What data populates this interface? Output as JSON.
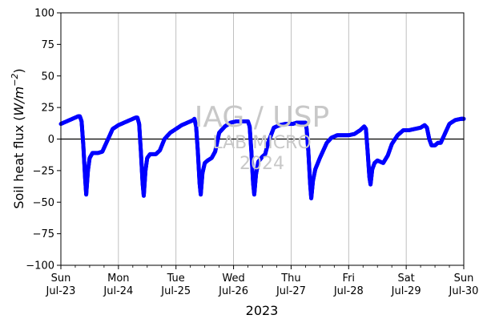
{
  "chart_data": {
    "type": "scatter",
    "title": "",
    "xlabel": "2023",
    "ylabel": "Soil heat flux (W/m⁻²)",
    "ylabel_prefix": "Soil heat flux (",
    "ylabel_unit_base": "W/m",
    "ylabel_unit_exp": "−2",
    "ylabel_suffix": ")",
    "ylim": [
      -100,
      100
    ],
    "yticks": [
      100,
      75,
      50,
      25,
      0,
      -25,
      -50,
      -75,
      -100
    ],
    "ytick_labels": [
      "100",
      "75",
      "50",
      "25",
      "0",
      "−25",
      "−50",
      "−75",
      "−100"
    ],
    "xlim_days": [
      0,
      7
    ],
    "xticks": [
      {
        "day": "Sun",
        "date": "Jul-23"
      },
      {
        "day": "Mon",
        "date": "Jul-24"
      },
      {
        "day": "Tue",
        "date": "Jul-25"
      },
      {
        "day": "Wed",
        "date": "Jul-26"
      },
      {
        "day": "Thu",
        "date": "Jul-27"
      },
      {
        "day": "Fri",
        "date": "Jul-28"
      },
      {
        "day": "Sat",
        "date": "Jul-29"
      },
      {
        "day": "Sun",
        "date": "Jul-30"
      }
    ],
    "grid": "vertical",
    "zero_line": true,
    "marker_color": "#0000ff",
    "series": [
      {
        "points": [
          [
            0.0,
            12
          ],
          [
            0.1,
            14
          ],
          [
            0.2,
            16
          ],
          [
            0.3,
            18
          ],
          [
            0.33,
            18
          ],
          [
            0.36,
            14
          ],
          [
            0.39,
            -5
          ],
          [
            0.42,
            -30
          ],
          [
            0.44,
            -44
          ],
          [
            0.47,
            -25
          ],
          [
            0.5,
            -15
          ],
          [
            0.55,
            -11
          ],
          [
            0.65,
            -11
          ],
          [
            0.72,
            -10
          ],
          [
            0.8,
            -2
          ],
          [
            0.9,
            8
          ],
          [
            1.0,
            11
          ],
          [
            1.1,
            13
          ],
          [
            1.2,
            15
          ],
          [
            1.3,
            17
          ],
          [
            1.33,
            17
          ],
          [
            1.36,
            12
          ],
          [
            1.39,
            -10
          ],
          [
            1.42,
            -35
          ],
          [
            1.44,
            -45
          ],
          [
            1.47,
            -25
          ],
          [
            1.5,
            -15
          ],
          [
            1.55,
            -12
          ],
          [
            1.65,
            -12
          ],
          [
            1.72,
            -9
          ],
          [
            1.8,
            0
          ],
          [
            1.9,
            5
          ],
          [
            2.0,
            8
          ],
          [
            2.1,
            11
          ],
          [
            2.2,
            13
          ],
          [
            2.3,
            15
          ],
          [
            2.32,
            16
          ],
          [
            2.35,
            10
          ],
          [
            2.38,
            -10
          ],
          [
            2.41,
            -35
          ],
          [
            2.43,
            -44
          ],
          [
            2.46,
            -27
          ],
          [
            2.5,
            -19
          ],
          [
            2.55,
            -17
          ],
          [
            2.62,
            -15
          ],
          [
            2.68,
            -10
          ],
          [
            2.75,
            5
          ],
          [
            2.85,
            10
          ],
          [
            2.95,
            13
          ],
          [
            3.05,
            14
          ],
          [
            3.15,
            14
          ],
          [
            3.25,
            14
          ],
          [
            3.28,
            10
          ],
          [
            3.31,
            -10
          ],
          [
            3.34,
            -35
          ],
          [
            3.36,
            -44
          ],
          [
            3.39,
            -28
          ],
          [
            3.43,
            -18
          ],
          [
            3.5,
            -14
          ],
          [
            3.55,
            -12
          ],
          [
            3.6,
            -3
          ],
          [
            3.7,
            9
          ],
          [
            3.8,
            11
          ],
          [
            3.9,
            12
          ],
          [
            3.98,
            12
          ],
          [
            4.03,
            12
          ],
          [
            4.1,
            13
          ],
          [
            4.25,
            13
          ],
          [
            4.27,
            8
          ],
          [
            4.3,
            -10
          ],
          [
            4.33,
            -35
          ],
          [
            4.35,
            -47
          ],
          [
            4.38,
            -33
          ],
          [
            4.42,
            -24
          ],
          [
            4.5,
            -15
          ],
          [
            4.55,
            -10
          ],
          [
            4.62,
            -3
          ],
          [
            4.7,
            1
          ],
          [
            4.8,
            3
          ],
          [
            4.9,
            3
          ],
          [
            5.0,
            3
          ],
          [
            5.1,
            4
          ],
          [
            5.2,
            7
          ],
          [
            5.27,
            10
          ],
          [
            5.3,
            8
          ],
          [
            5.33,
            -10
          ],
          [
            5.36,
            -30
          ],
          [
            5.38,
            -36
          ],
          [
            5.41,
            -24
          ],
          [
            5.45,
            -19
          ],
          [
            5.5,
            -17
          ],
          [
            5.55,
            -18
          ],
          [
            5.6,
            -19
          ],
          [
            5.68,
            -13
          ],
          [
            5.75,
            -4
          ],
          [
            5.85,
            3
          ],
          [
            5.95,
            7
          ],
          [
            6.05,
            7
          ],
          [
            6.15,
            8
          ],
          [
            6.25,
            9
          ],
          [
            6.32,
            11
          ],
          [
            6.36,
            9
          ],
          [
            6.4,
            0
          ],
          [
            6.44,
            -5
          ],
          [
            6.5,
            -5
          ],
          [
            6.55,
            -3
          ],
          [
            6.6,
            -3
          ],
          [
            6.65,
            2
          ],
          [
            6.75,
            12
          ],
          [
            6.85,
            15
          ],
          [
            6.95,
            16
          ],
          [
            7.0,
            16
          ]
        ]
      }
    ]
  },
  "watermark": {
    "line1": "IAG / USP",
    "line2": "LAB MICRO",
    "line3": "2024"
  }
}
